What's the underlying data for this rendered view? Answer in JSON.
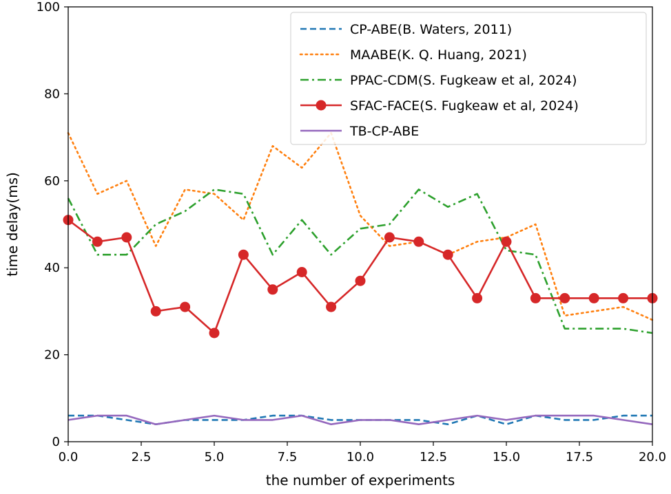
{
  "chart_data": {
    "type": "line",
    "title": "",
    "xlabel": "the number of experiments",
    "ylabel": "time delay(ms)",
    "xlim": [
      0,
      20
    ],
    "ylim": [
      0,
      100
    ],
    "xticks": [
      "0.0",
      "2.5",
      "5.0",
      "7.5",
      "10.0",
      "12.5",
      "15.0",
      "17.5",
      "20.0"
    ],
    "yticks": [
      "0",
      "20",
      "40",
      "60",
      "80",
      "100"
    ],
    "legend_position": "top-right",
    "x": [
      0,
      1,
      2,
      3,
      4,
      5,
      6,
      7,
      8,
      9,
      10,
      11,
      12,
      13,
      14,
      15,
      16,
      17,
      18,
      19,
      20
    ],
    "series": [
      {
        "name": "CP-ABE(B. Waters, 2011)",
        "color": "#1f77b4",
        "style": "dashed",
        "values": [
          6,
          6,
          5,
          4,
          5,
          5,
          5,
          6,
          6,
          5,
          5,
          5,
          5,
          4,
          6,
          4,
          6,
          5,
          5,
          6,
          6
        ]
      },
      {
        "name": "MAABE(K. Q. Huang, 2021)",
        "color": "#ff7f0e",
        "style": "dotted",
        "values": [
          71,
          57,
          60,
          45,
          58,
          57,
          51,
          68,
          63,
          71,
          52,
          45,
          46,
          43,
          46,
          47,
          50,
          29,
          30,
          31,
          28
        ]
      },
      {
        "name": "PPAC-CDM(S. Fugkeaw et al, 2024)",
        "color": "#2ca02c",
        "style": "dashdot",
        "values": [
          56,
          43,
          43,
          50,
          53,
          58,
          57,
          43,
          51,
          43,
          49,
          50,
          58,
          54,
          57,
          44,
          43,
          26,
          26,
          26,
          25
        ]
      },
      {
        "name": "SFAC-FACE(S. Fugkeaw et al, 2024)",
        "color": "#d62728",
        "style": "solid-marker",
        "values": [
          51,
          46,
          47,
          30,
          31,
          25,
          43,
          35,
          39,
          31,
          37,
          47,
          46,
          43,
          33,
          46,
          33,
          33,
          33,
          33,
          33
        ]
      },
      {
        "name": "TB-CP-ABE",
        "color": "#9467bd",
        "style": "solid",
        "values": [
          5,
          6,
          6,
          4,
          5,
          6,
          5,
          5,
          6,
          4,
          5,
          5,
          4,
          5,
          6,
          5,
          6,
          6,
          6,
          5,
          4
        ]
      }
    ]
  }
}
